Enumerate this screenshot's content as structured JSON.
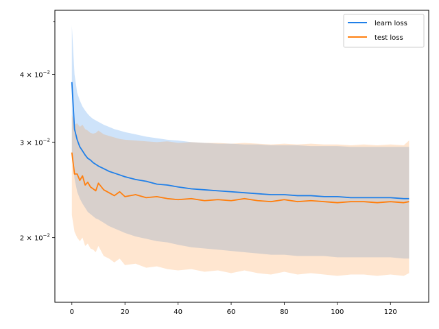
{
  "chart_data": {
    "type": "line",
    "title": "",
    "xlabel": "",
    "ylabel": "",
    "xlim": [
      -6.4,
      134.4
    ],
    "ylim": [
      0.0152,
      0.0525
    ],
    "yscale": "log",
    "grid": false,
    "legend_position": "upper-right",
    "x_ticks": [
      0,
      20,
      40,
      60,
      80,
      100,
      120
    ],
    "x_tick_labels": [
      "0",
      "20",
      "40",
      "60",
      "80",
      "100",
      "120"
    ],
    "y_ticks": [
      {
        "value": 0.02,
        "mantissa": "2",
        "exponent": "−2"
      },
      {
        "value": 0.03,
        "mantissa": "3",
        "exponent": "−2"
      },
      {
        "value": 0.04,
        "mantissa": "4",
        "exponent": "−2"
      }
    ],
    "x": [
      0,
      1,
      2,
      3,
      4,
      5,
      6,
      7,
      8,
      9,
      10,
      12,
      14,
      16,
      18,
      20,
      24,
      28,
      32,
      36,
      40,
      45,
      50,
      55,
      60,
      65,
      70,
      75,
      80,
      85,
      90,
      95,
      100,
      105,
      110,
      115,
      120,
      125,
      127
    ],
    "series": [
      {
        "name": "learn loss",
        "color": "#1f7fe8",
        "band_color": "#1f7fe8",
        "values": [
          0.0387,
          0.0317,
          0.0303,
          0.0294,
          0.0289,
          0.0284,
          0.028,
          0.0278,
          0.0275,
          0.0273,
          0.0271,
          0.0268,
          0.0265,
          0.0263,
          0.0261,
          0.0259,
          0.0256,
          0.0254,
          0.0251,
          0.025,
          0.0248,
          0.0246,
          0.0245,
          0.0244,
          0.0243,
          0.0242,
          0.0241,
          0.024,
          0.024,
          0.0239,
          0.0239,
          0.0238,
          0.0238,
          0.0237,
          0.0237,
          0.0237,
          0.0237,
          0.0236,
          0.0236
        ],
        "upper": [
          0.0492,
          0.04,
          0.037,
          0.0358,
          0.0349,
          0.0343,
          0.0338,
          0.0334,
          0.0331,
          0.0329,
          0.0327,
          0.0323,
          0.032,
          0.0317,
          0.0315,
          0.0313,
          0.031,
          0.0307,
          0.0305,
          0.0303,
          0.0302,
          0.03,
          0.0299,
          0.0298,
          0.0298,
          0.0297,
          0.0297,
          0.0296,
          0.0296,
          0.0296,
          0.0295,
          0.0295,
          0.0295,
          0.0294,
          0.0294,
          0.0294,
          0.0294,
          0.0294,
          0.0294
        ],
        "lower": [
          0.0285,
          0.0257,
          0.0243,
          0.0236,
          0.0231,
          0.0227,
          0.0223,
          0.0221,
          0.0219,
          0.0217,
          0.0216,
          0.0213,
          0.021,
          0.0208,
          0.0206,
          0.0204,
          0.0201,
          0.0199,
          0.0197,
          0.0196,
          0.0194,
          0.0192,
          0.0191,
          0.019,
          0.0189,
          0.0188,
          0.0187,
          0.0186,
          0.0186,
          0.0185,
          0.0185,
          0.0185,
          0.0184,
          0.0184,
          0.0184,
          0.0184,
          0.0184,
          0.0183,
          0.0183
        ]
      },
      {
        "name": "test loss",
        "color": "#ff7f0e",
        "band_color": "#ff8c2a",
        "values": [
          0.0287,
          0.0262,
          0.0262,
          0.0255,
          0.026,
          0.025,
          0.0253,
          0.0248,
          0.0246,
          0.0244,
          0.0252,
          0.0245,
          0.0242,
          0.0239,
          0.0243,
          0.0238,
          0.024,
          0.0237,
          0.0238,
          0.0236,
          0.0235,
          0.0236,
          0.0234,
          0.0235,
          0.0234,
          0.0236,
          0.0234,
          0.0233,
          0.0235,
          0.0233,
          0.0234,
          0.0233,
          0.0232,
          0.0233,
          0.0233,
          0.0232,
          0.0233,
          0.0232,
          0.0233
        ],
        "upper": [
          0.0337,
          0.0323,
          0.0325,
          0.032,
          0.0323,
          0.0317,
          0.0315,
          0.0312,
          0.0311,
          0.0312,
          0.0315,
          0.031,
          0.0308,
          0.0306,
          0.0304,
          0.0303,
          0.0302,
          0.0301,
          0.03,
          0.0301,
          0.0299,
          0.03,
          0.0299,
          0.0299,
          0.0298,
          0.0299,
          0.0298,
          0.0297,
          0.0298,
          0.0297,
          0.0298,
          0.0297,
          0.0297,
          0.0296,
          0.0297,
          0.0296,
          0.0297,
          0.0296,
          0.0302
        ],
        "lower": [
          0.022,
          0.0205,
          0.02,
          0.0197,
          0.02,
          0.0193,
          0.0195,
          0.0191,
          0.019,
          0.0188,
          0.0193,
          0.0185,
          0.0183,
          0.018,
          0.0183,
          0.0178,
          0.0179,
          0.0176,
          0.0177,
          0.0175,
          0.0174,
          0.0175,
          0.0173,
          0.0174,
          0.0172,
          0.0174,
          0.0172,
          0.0171,
          0.0173,
          0.0171,
          0.0172,
          0.0171,
          0.017,
          0.0171,
          0.0171,
          0.017,
          0.0171,
          0.017,
          0.0172
        ]
      }
    ]
  }
}
